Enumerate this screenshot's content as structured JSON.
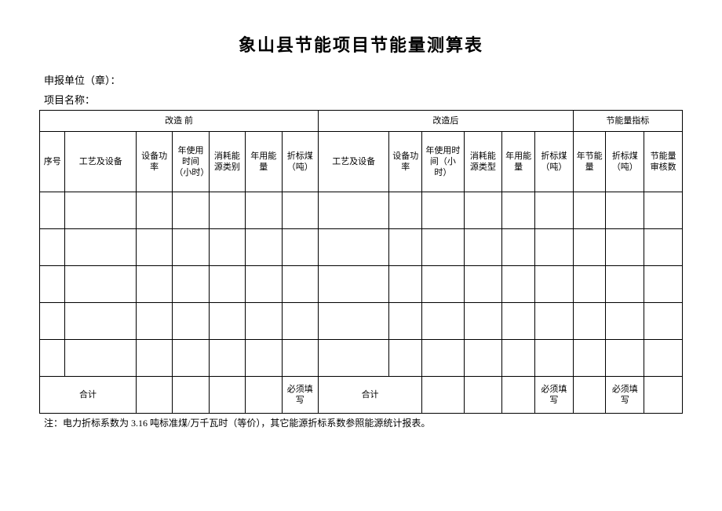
{
  "title": "象山县节能项目节能量测算表",
  "meta": {
    "applicant_label": "申报单位（章）：",
    "project_label": "项目名称："
  },
  "group_headers": {
    "before": "改造        前",
    "after": "改造后",
    "indicator": "节能量指标"
  },
  "columns": {
    "c0": "序号",
    "c1": "工艺及设备",
    "c2": "设备功率",
    "c3": "年使用时间（小时）",
    "c4": "消耗能源类别",
    "c5": "年用能量",
    "c6": "折标煤（吨）",
    "c7": "工艺及设备",
    "c8": "设备功率",
    "c9": "年使用时间（小时）",
    "c10": "消耗能源类型",
    "c11": "年用能量",
    "c12": "折标煤（吨）",
    "c13": "年节能量",
    "c14": "折标煤（吨）",
    "c15": "节能量审核数"
  },
  "total_row": {
    "label": "合计",
    "required": "必须填写"
  },
  "footnote": "注：电力折标系数为 3.16 吨标准煤/万千瓦时（等价），其它能源折标系数参照能源统计报表。",
  "style": {
    "background_color": "#ffffff",
    "text_color": "#000000",
    "border_color": "#000000",
    "title_fontsize": 22,
    "body_fontsize": 11,
    "footnote_fontsize": 12,
    "data_rows": 5
  }
}
